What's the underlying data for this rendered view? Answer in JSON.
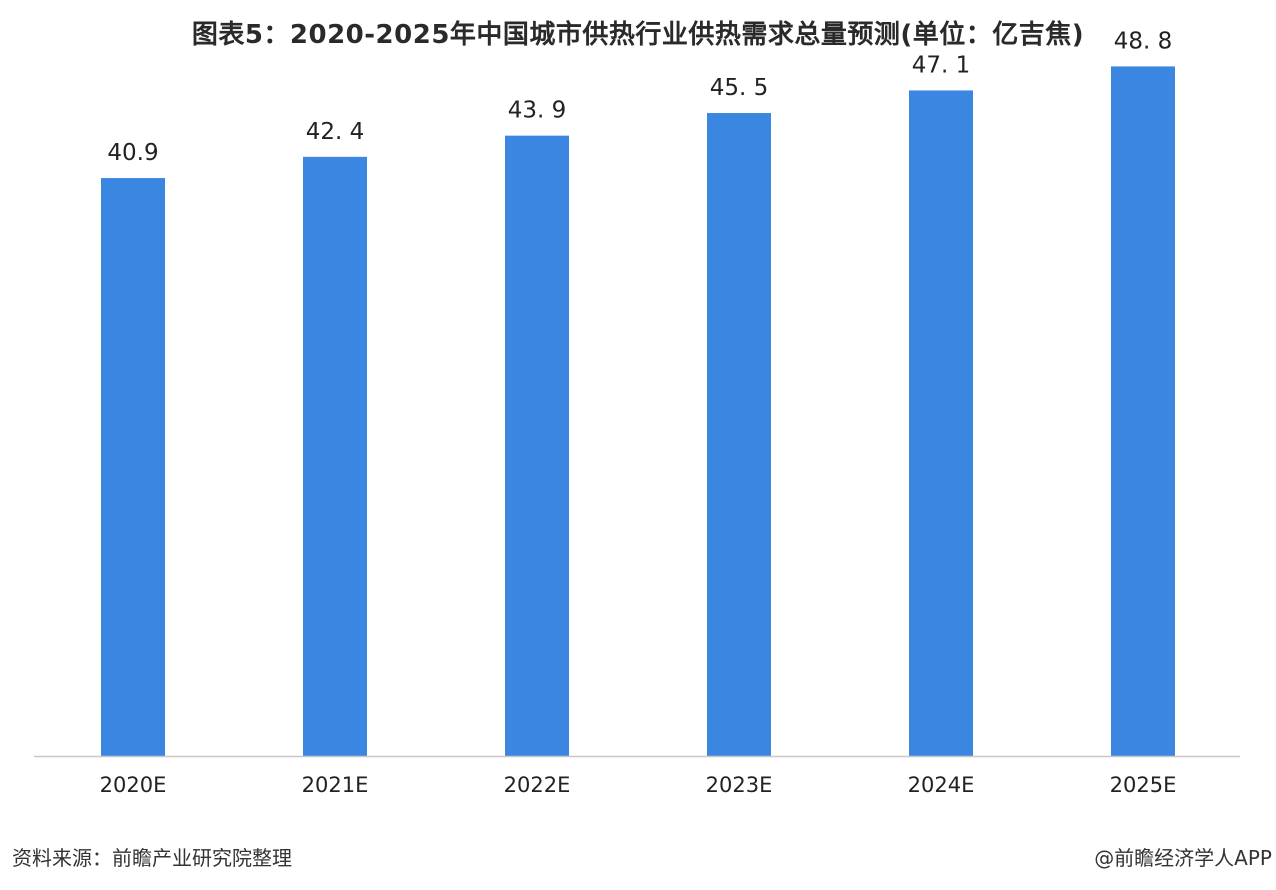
{
  "title": "图表5：2020-2025年中国城市供热行业供热需求总量预测(单位：亿吉焦)",
  "source": "资料来源：前瞻产业研究院整理",
  "credit": "@前瞻经济学人APP",
  "colors": {
    "bar": "#3a86e0",
    "axis": "#c8c8c8",
    "text": "#222222"
  },
  "chart_data": {
    "type": "bar",
    "title": "图表5：2020-2025年中国城市供热行业供热需求总量预测(单位：亿吉焦)",
    "categories": [
      "2020E",
      "2021E",
      "2022E",
      "2023E",
      "2024E",
      "2025E"
    ],
    "values": [
      40.9,
      42.4,
      43.9,
      45.5,
      47.1,
      48.8
    ],
    "value_labels": [
      "40.9",
      "42. 4",
      "43. 9",
      "45. 5",
      "47. 1",
      "48. 8"
    ],
    "xlabel": "",
    "ylabel": "",
    "ylim": [
      0,
      53.5
    ],
    "grid": false,
    "legend": "none"
  }
}
